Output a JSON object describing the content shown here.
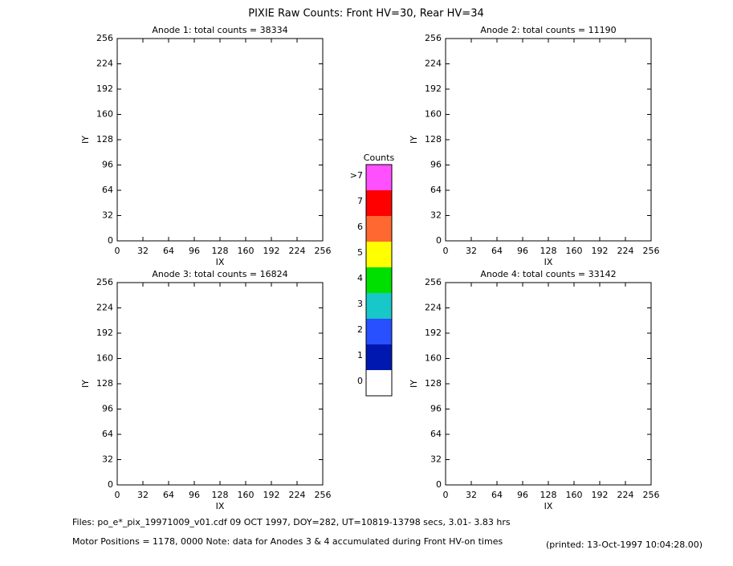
{
  "title": "PIXIE Raw Counts:  Front HV=30, Rear HV=34",
  "chart_data": [
    {
      "type": "heatmap",
      "title": "Anode 1: total counts = 38334",
      "x_label": "IX",
      "y_label": "IY",
      "xlim": [
        0,
        256
      ],
      "ylim": [
        0,
        256
      ],
      "xticks": [
        0,
        32,
        64,
        96,
        128,
        160,
        192,
        224,
        256
      ],
      "yticks": [
        0,
        32,
        64,
        96,
        128,
        160,
        192,
        224,
        256
      ]
    },
    {
      "type": "heatmap",
      "title": "Anode 2: total counts = 11190",
      "x_label": "IX",
      "y_label": "IY",
      "xlim": [
        0,
        256
      ],
      "ylim": [
        0,
        256
      ],
      "xticks": [
        0,
        32,
        64,
        96,
        128,
        160,
        192,
        224,
        256
      ],
      "yticks": [
        0,
        32,
        64,
        96,
        128,
        160,
        192,
        224,
        256
      ]
    },
    {
      "type": "heatmap",
      "title": "Anode 3: total counts = 16824",
      "x_label": "IX",
      "y_label": "IY",
      "xlim": [
        0,
        256
      ],
      "ylim": [
        0,
        256
      ],
      "xticks": [
        0,
        32,
        64,
        96,
        128,
        160,
        192,
        224,
        256
      ],
      "yticks": [
        0,
        32,
        64,
        96,
        128,
        160,
        192,
        224,
        256
      ]
    },
    {
      "type": "heatmap",
      "title": "Anode 4: total counts = 33142",
      "x_label": "IX",
      "y_label": "IY",
      "xlim": [
        0,
        256
      ],
      "ylim": [
        0,
        256
      ],
      "xticks": [
        0,
        32,
        64,
        96,
        128,
        160,
        192,
        224,
        256
      ],
      "yticks": [
        0,
        32,
        64,
        96,
        128,
        160,
        192,
        224,
        256
      ]
    }
  ],
  "colorbar": {
    "title": "Counts",
    "labels": [
      "0",
      "1",
      "2",
      "3",
      "4",
      "5",
      "6",
      "7",
      ">7"
    ],
    "colors": [
      "#ffffff",
      "#0018b0",
      "#2850ff",
      "#18c8c8",
      "#00e000",
      "#ffff00",
      "#ff6830",
      "#ff0000",
      "#ff50ff"
    ]
  },
  "footer": {
    "line1": "Files: po_e*_pix_19971009_v01.cdf    09 OCT 1997, DOY=282, UT=10819-13798 secs,  3.01- 3.83 hrs",
    "line2": "Motor Positions = 1178, 0000    Note: data for Anodes 3 & 4 accumulated during Front HV-on times",
    "printed": "(printed: 13-Oct-1997 10:04:28.00)"
  }
}
